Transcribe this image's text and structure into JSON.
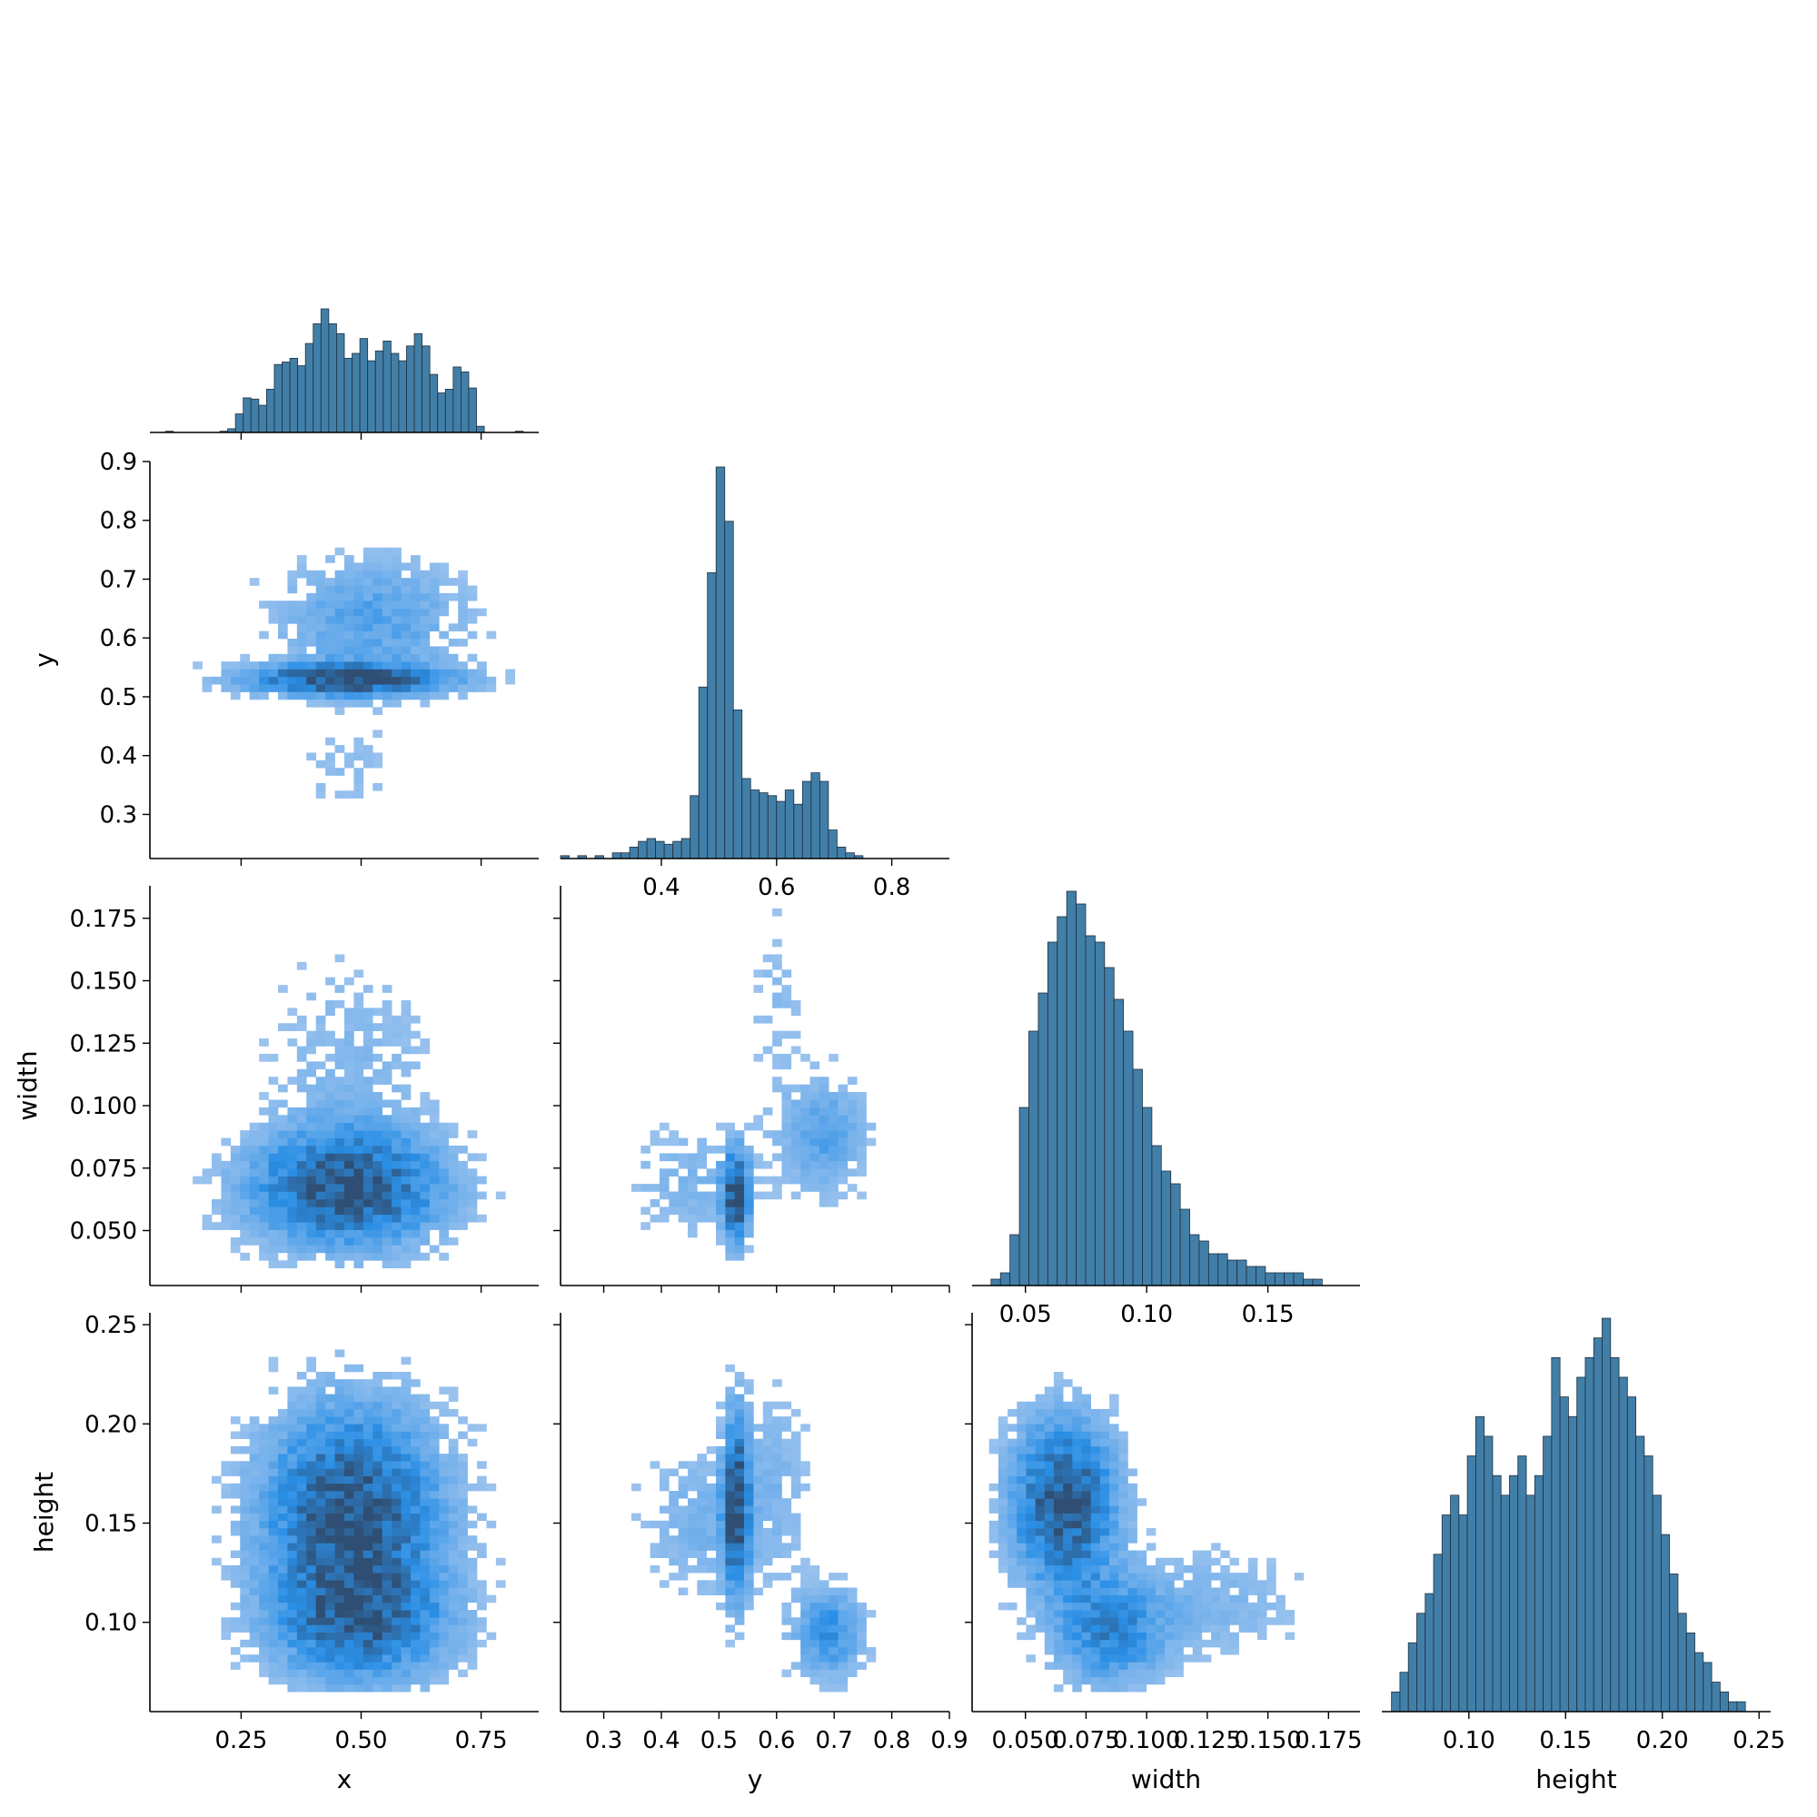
{
  "chart_data": {
    "type": "pairplot",
    "layout": "corner",
    "variables": [
      "x",
      "y",
      "width",
      "height"
    ],
    "colors": {
      "bar": "#3274a1",
      "hist_low": "#a7c8ef",
      "hist_mid": "#2a8fe6",
      "hist_high": "#2f4e73"
    },
    "axes": {
      "x": {
        "label": "x",
        "lim": [
          0.06,
          0.87
        ],
        "ticks": [
          0.25,
          0.5,
          0.75
        ],
        "tick_labels": [
          "0.25",
          "0.50",
          "0.75"
        ]
      },
      "y": {
        "label": "y",
        "lim": [
          0.225,
          0.9
        ],
        "ticks": [
          0.3,
          0.4,
          0.5,
          0.6,
          0.7,
          0.8,
          0.9
        ],
        "tick_labels": [
          "0.3",
          "0.4",
          "0.5",
          "0.6",
          "0.7",
          "0.8",
          "0.9"
        ]
      },
      "y_diag": {
        "ticks": [
          0.4,
          0.6,
          0.8
        ],
        "tick_labels": [
          "0.4",
          "0.6",
          "0.8"
        ]
      },
      "width": {
        "label": "width",
        "lim": [
          0.028,
          0.188
        ],
        "ticks": [
          0.05,
          0.075,
          0.1,
          0.125,
          0.15,
          0.175
        ],
        "tick_labels": [
          "0.050",
          "0.075",
          "0.100",
          "0.125",
          "0.150",
          "0.175"
        ]
      },
      "width_diag": {
        "ticks": [
          0.05,
          0.1,
          0.15
        ],
        "tick_labels": [
          "0.05",
          "0.10",
          "0.15"
        ]
      },
      "height": {
        "label": "height",
        "lim": [
          0.055,
          0.256
        ],
        "ticks": [
          0.1,
          0.15,
          0.2,
          0.25
        ],
        "tick_labels": [
          "0.10",
          "0.15",
          "0.20",
          "0.25"
        ]
      }
    },
    "marginals": {
      "x": {
        "range": [
          0.06,
          0.87
        ],
        "counts": [
          0,
          0,
          1,
          0,
          0,
          0,
          0,
          0,
          0,
          1,
          3,
          15,
          28,
          27,
          22,
          35,
          55,
          57,
          60,
          54,
          72,
          88,
          100,
          88,
          80,
          60,
          64,
          76,
          58,
          66,
          74,
          64,
          58,
          70,
          80,
          70,
          47,
          32,
          35,
          53,
          49,
          36,
          5,
          0,
          0,
          0,
          0,
          1,
          0,
          0
        ]
      },
      "y": {
        "range": [
          0.225,
          0.9
        ],
        "counts": [
          1,
          0,
          1,
          0,
          1,
          0,
          2,
          2,
          4,
          6,
          7,
          6,
          5,
          6,
          7,
          22,
          60,
          100,
          137,
          118,
          52,
          28,
          24,
          23,
          22,
          20,
          24,
          19,
          27,
          30,
          27,
          10,
          4,
          2,
          1,
          0,
          0,
          0,
          0,
          0,
          0,
          0,
          0,
          0,
          0
        ]
      },
      "width": {
        "range": [
          0.028,
          0.188
        ],
        "counts": [
          0,
          0,
          1,
          2,
          8,
          28,
          40,
          46,
          54,
          58,
          62,
          60,
          55,
          54,
          50,
          45,
          40,
          34,
          28,
          22,
          18,
          16,
          12,
          8,
          7,
          5,
          5,
          4,
          4,
          3,
          3,
          2,
          2,
          2,
          2,
          1,
          1,
          0,
          0,
          0,
          0
        ]
      },
      "height": {
        "range": [
          0.06,
          0.256
        ],
        "counts": [
          2,
          4,
          7,
          10,
          12,
          16,
          20,
          22,
          20,
          26,
          30,
          28,
          24,
          22,
          24,
          26,
          22,
          24,
          28,
          36,
          32,
          30,
          34,
          36,
          38,
          40,
          36,
          34,
          32,
          28,
          26,
          22,
          18,
          14,
          10,
          8,
          6,
          5,
          3,
          2,
          1,
          1,
          0,
          0,
          0
        ]
      }
    },
    "joint_clusters": [
      {
        "pair": [
          "y",
          "x"
        ],
        "clusters": [
          {
            "cx": 0.47,
            "cy": 0.53,
            "sx": 0.14,
            "sy": 0.018,
            "w": 1.0
          },
          {
            "cx": 0.52,
            "cy": 0.63,
            "sx": 0.13,
            "sy": 0.07,
            "w": 0.35
          },
          {
            "cx": 0.47,
            "cy": 0.38,
            "sx": 0.09,
            "sy": 0.06,
            "w": 0.1
          }
        ],
        "xrange": [
          0.09,
          0.84
        ],
        "yrange": [
          0.25,
          0.87
        ]
      },
      {
        "pair": [
          "width",
          "x"
        ],
        "clusters": [
          {
            "cx": 0.47,
            "cy": 0.067,
            "sx": 0.13,
            "sy": 0.015,
            "w": 1.0
          },
          {
            "cx": 0.48,
            "cy": 0.115,
            "sx": 0.12,
            "sy": 0.03,
            "w": 0.15
          }
        ],
        "xrange": [
          0.09,
          0.84
        ],
        "yrange": [
          0.035,
          0.182
        ]
      },
      {
        "pair": [
          "width",
          "y"
        ],
        "clusters": [
          {
            "cx": 0.53,
            "cy": 0.064,
            "sx": 0.015,
            "sy": 0.012,
            "w": 1.0
          },
          {
            "cx": 0.68,
            "cy": 0.088,
            "sx": 0.05,
            "sy": 0.015,
            "w": 0.35
          },
          {
            "cx": 0.6,
            "cy": 0.14,
            "sx": 0.03,
            "sy": 0.025,
            "w": 0.12
          },
          {
            "cx": 0.45,
            "cy": 0.07,
            "sx": 0.07,
            "sy": 0.015,
            "w": 0.18
          }
        ],
        "xrange": [
          0.25,
          0.87
        ],
        "yrange": [
          0.035,
          0.182
        ]
      },
      {
        "pair": [
          "height",
          "x"
        ],
        "clusters": [
          {
            "cx": 0.48,
            "cy": 0.155,
            "sx": 0.12,
            "sy": 0.035,
            "w": 1.0
          },
          {
            "cx": 0.5,
            "cy": 0.1,
            "sx": 0.12,
            "sy": 0.02,
            "w": 0.7
          }
        ],
        "xrange": [
          0.09,
          0.84
        ],
        "yrange": [
          0.065,
          0.245
        ]
      },
      {
        "pair": [
          "height",
          "y"
        ],
        "clusters": [
          {
            "cx": 0.53,
            "cy": 0.16,
            "sx": 0.015,
            "sy": 0.03,
            "w": 1.0
          },
          {
            "cx": 0.69,
            "cy": 0.095,
            "sx": 0.04,
            "sy": 0.015,
            "w": 0.5
          },
          {
            "cx": 0.47,
            "cy": 0.15,
            "sx": 0.07,
            "sy": 0.025,
            "w": 0.2
          },
          {
            "cx": 0.6,
            "cy": 0.17,
            "sx": 0.04,
            "sy": 0.035,
            "w": 0.15
          }
        ],
        "xrange": [
          0.25,
          0.87
        ],
        "yrange": [
          0.065,
          0.245
        ]
      },
      {
        "pair": [
          "height",
          "width"
        ],
        "clusters": [
          {
            "cx": 0.066,
            "cy": 0.16,
            "sx": 0.014,
            "sy": 0.028,
            "w": 1.0
          },
          {
            "cx": 0.085,
            "cy": 0.095,
            "sx": 0.015,
            "sy": 0.018,
            "w": 0.55
          },
          {
            "cx": 0.125,
            "cy": 0.11,
            "sx": 0.025,
            "sy": 0.018,
            "w": 0.18
          }
        ],
        "xrange": [
          0.035,
          0.18
        ],
        "yrange": [
          0.065,
          0.245
        ]
      }
    ]
  }
}
